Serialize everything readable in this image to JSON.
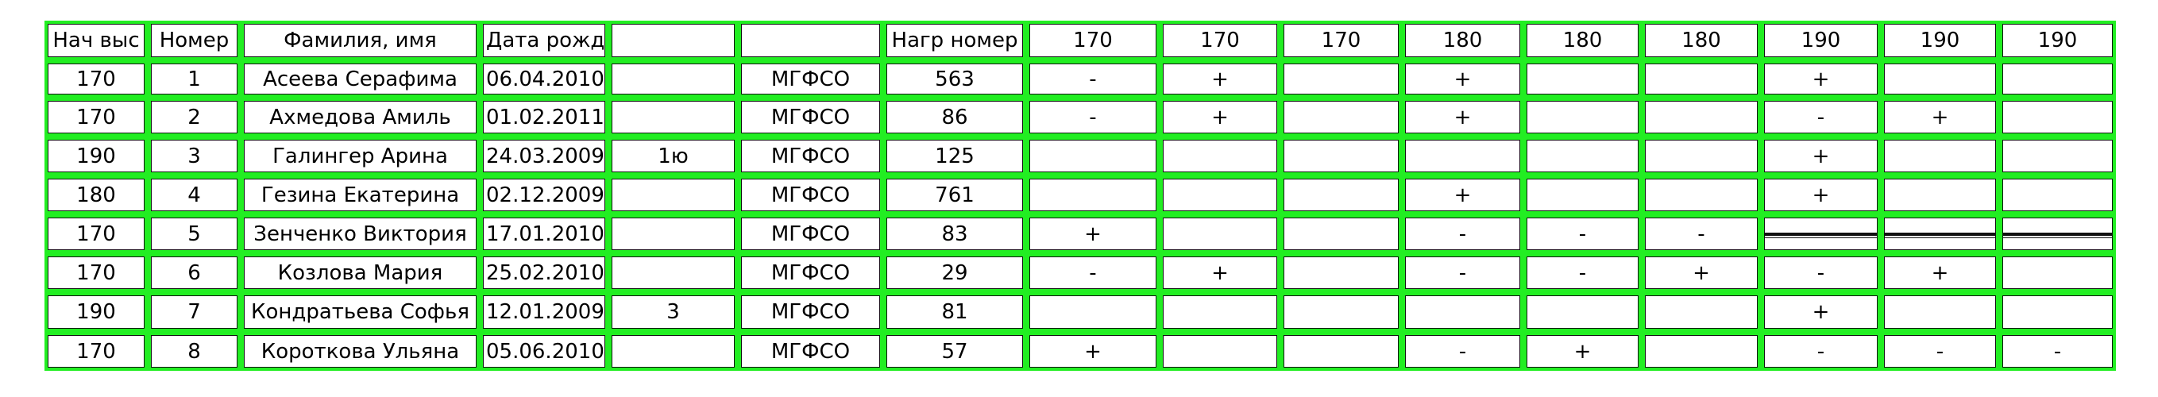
{
  "headers": [
    "Нач выс",
    "Номер",
    "Фамилия, имя",
    "Дата рожд",
    "",
    "",
    "Нагр номер",
    "170",
    "170",
    "170",
    "180",
    "180",
    "180",
    "190",
    "190",
    "190"
  ],
  "rows": [
    [
      "170",
      "1",
      "Асеева Серафима",
      "06.04.2010",
      "",
      "МГФСО",
      "563",
      "-",
      "+",
      "",
      "+",
      "",
      "",
      "+",
      "",
      ""
    ],
    [
      "170",
      "2",
      "Ахмедова Амиль",
      "01.02.2011",
      "",
      "МГФСО",
      "86",
      "-",
      "+",
      "",
      "+",
      "",
      "",
      "-",
      "+",
      ""
    ],
    [
      "190",
      "3",
      "Галингер Арина",
      "24.03.2009",
      "1ю",
      "МГФСО",
      "125",
      "",
      "",
      "",
      "",
      "",
      "",
      "+",
      "",
      ""
    ],
    [
      "180",
      "4",
      "Гезина Екатерина",
      "02.12.2009",
      "",
      "МГФСО",
      "761",
      "",
      "",
      "",
      "+",
      "",
      "",
      "+",
      "",
      ""
    ],
    [
      "170",
      "5",
      "Зенченко Виктория",
      "17.01.2010",
      "",
      "МГФСО",
      "83",
      "+",
      "",
      "",
      "-",
      "-",
      "-",
      "",
      "",
      ""
    ],
    [
      "170",
      "6",
      "Козлова Мария",
      "25.02.2010",
      "",
      "МГФСО",
      "29",
      "-",
      "+",
      "",
      "-",
      "-",
      "+",
      "-",
      "+",
      ""
    ],
    [
      "190",
      "7",
      "Кондратьева Софья",
      "12.01.2009",
      "3",
      "МГФСО",
      "81",
      "",
      "",
      "",
      "",
      "",
      "",
      "+",
      "",
      ""
    ],
    [
      "170",
      "8",
      "Короткова Ульяна",
      "05.06.2010",
      "",
      "МГФСО",
      "57",
      "+",
      "",
      "",
      "-",
      "+",
      "",
      "-",
      "-",
      "-"
    ]
  ],
  "colors": {
    "grid_fill": "#22ee22",
    "cell_bg": "#ffffff",
    "text": "#000000"
  }
}
